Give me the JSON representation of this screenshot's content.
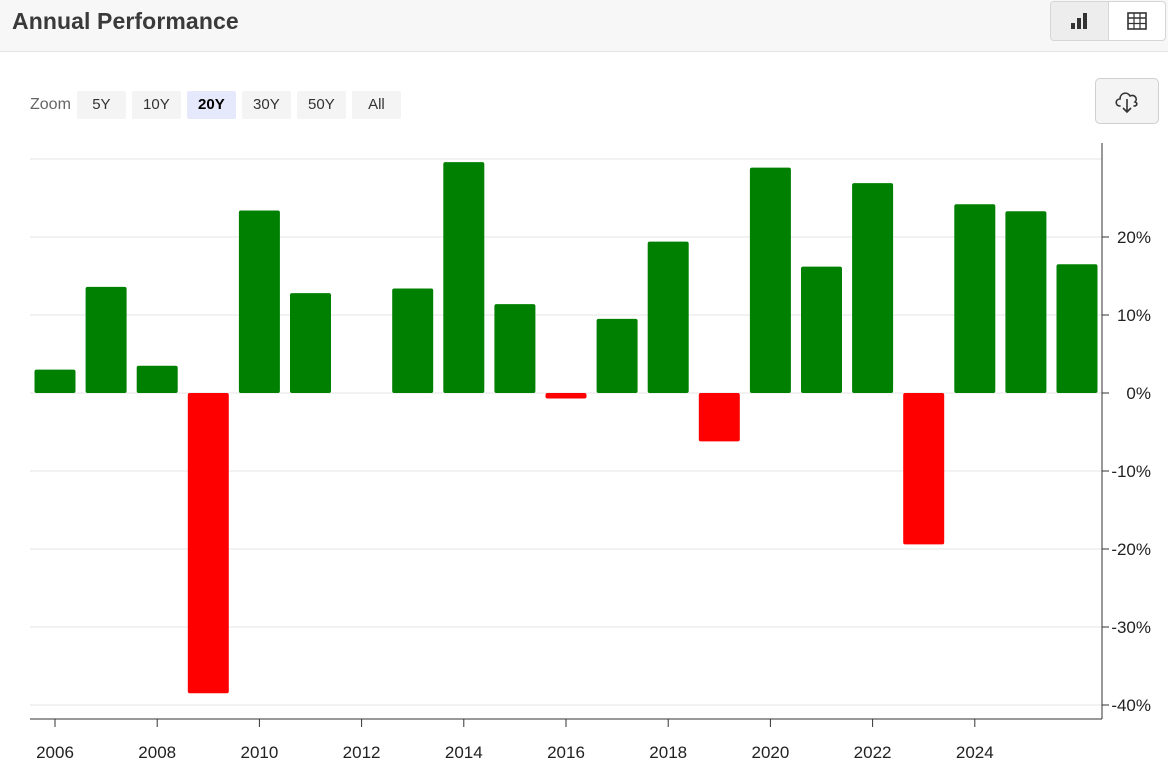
{
  "header": {
    "title": "Annual Performance"
  },
  "view_toggle": [
    {
      "icon": "bar-chart-icon",
      "active": true
    },
    {
      "icon": "table-icon",
      "active": false
    }
  ],
  "zoom": {
    "label": "Zoom",
    "options": [
      "5Y",
      "10Y",
      "20Y",
      "30Y",
      "50Y",
      "All"
    ],
    "selected": "20Y"
  },
  "download": {
    "icon": "cloud-download-icon"
  },
  "colors": {
    "positive": "#008000",
    "negative": "#ff0000",
    "grid": "#e6e6e6",
    "axis": "#333333"
  },
  "chart_data": {
    "type": "bar",
    "title": "",
    "xlabel": "",
    "ylabel": "",
    "categories": [
      2006,
      2007,
      2008,
      2009,
      2010,
      2011,
      2012,
      2013,
      2014,
      2015,
      2016,
      2017,
      2018,
      2019,
      2020,
      2021,
      2022,
      2023,
      2024,
      2025,
      2026
    ],
    "values": [
      3.0,
      13.6,
      3.5,
      -38.5,
      23.4,
      12.8,
      0,
      13.4,
      29.6,
      11.4,
      -0.7,
      9.5,
      19.4,
      -6.2,
      28.9,
      16.2,
      26.9,
      -19.4,
      24.2,
      23.3,
      16.5
    ],
    "ylim": [
      -40,
      30
    ],
    "yticks": [
      -40,
      -30,
      -20,
      -10,
      0,
      10,
      20
    ],
    "ytick_labels": [
      "-40%",
      "-30%",
      "-20%",
      "-10%",
      "0%",
      "10%",
      "20%"
    ],
    "xticks": [
      2006,
      2008,
      2010,
      2012,
      2014,
      2016,
      2018,
      2020,
      2022,
      2024
    ],
    "xtick_labels": [
      "2006",
      "2008",
      "2010",
      "2012",
      "2014",
      "2016",
      "2018",
      "2020",
      "2022",
      "2024"
    ],
    "y_axis_side": "right",
    "grid": true,
    "legend": "none"
  }
}
